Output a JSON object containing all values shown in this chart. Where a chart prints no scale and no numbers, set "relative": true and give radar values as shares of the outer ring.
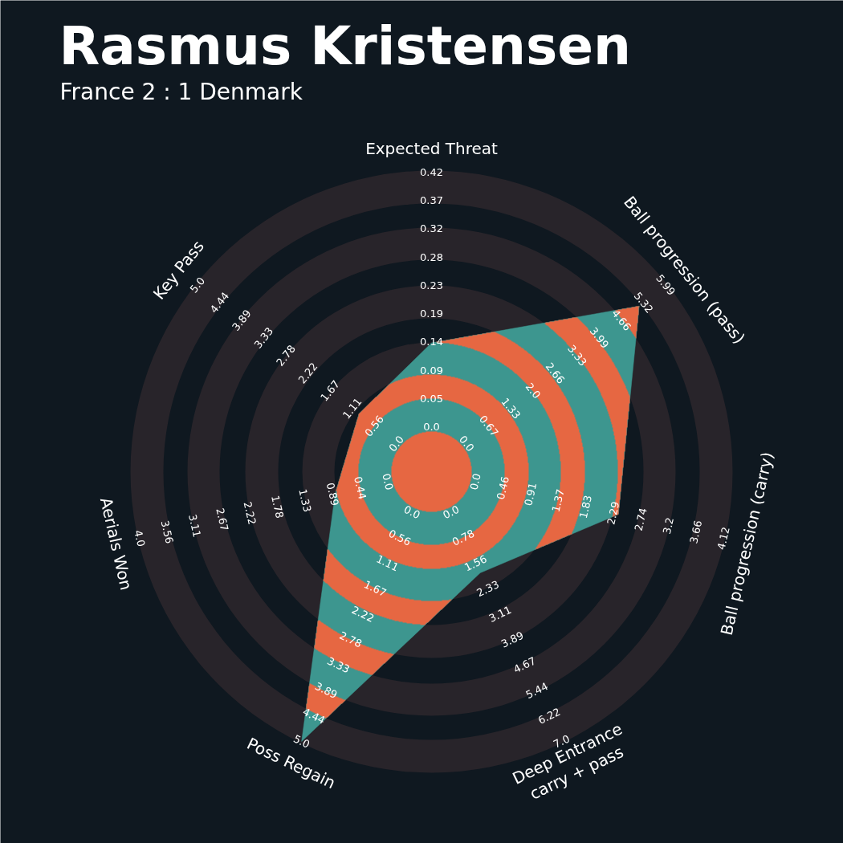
{
  "chart_data": {
    "type": "radar",
    "title": "Rasmus Kristensen",
    "subtitle": "France 2 : 1 Denmark",
    "relative": true,
    "categories": [
      "Expected Threat",
      "Ball progression (pass)",
      "Ball progression (carry)",
      "Deep Entrance\ncarry + pass",
      "Poss Regain",
      "Aerials Won",
      "Key Pass"
    ],
    "series": [
      {
        "color": "#3d968f",
        "values": [
          0.43,
          0.887,
          0.64,
          0.375,
          1.0,
          0.33,
          0.31
        ]
      }
    ],
    "annotations": [
      "0.0",
      "0.05",
      "0.09",
      "0.14",
      "0.19",
      "0.23",
      "0.28",
      "0.32",
      "0.37",
      "0.42",
      "0.0",
      "0.67",
      "1.33",
      "2.0",
      "2.66",
      "3.33",
      "3.99",
      "4.66",
      "5.32",
      "5.99",
      "0.0",
      "0.46",
      "0.91",
      "1.37",
      "1.83",
      "2.29",
      "2.74",
      "3.2",
      "3.66",
      "4.12",
      "0.0",
      "0.78",
      "1.56",
      "2.33",
      "3.11",
      "3.89",
      "4.67",
      "5.44",
      "6.22",
      "7.0",
      "0.0",
      "0.56",
      "1.11",
      "1.67",
      "2.22",
      "2.78",
      "3.33",
      "3.89",
      "4.44",
      "5.0",
      "0.0",
      "0.44",
      "0.89",
      "1.33",
      "1.78",
      "2.22",
      "2.67",
      "3.11",
      "3.56",
      "4.0",
      "0.0",
      "0.56",
      "1.11",
      "1.67",
      "2.22",
      "2.78",
      "3.33",
      "3.89",
      "4.44",
      "5.0"
    ]
  }
}
